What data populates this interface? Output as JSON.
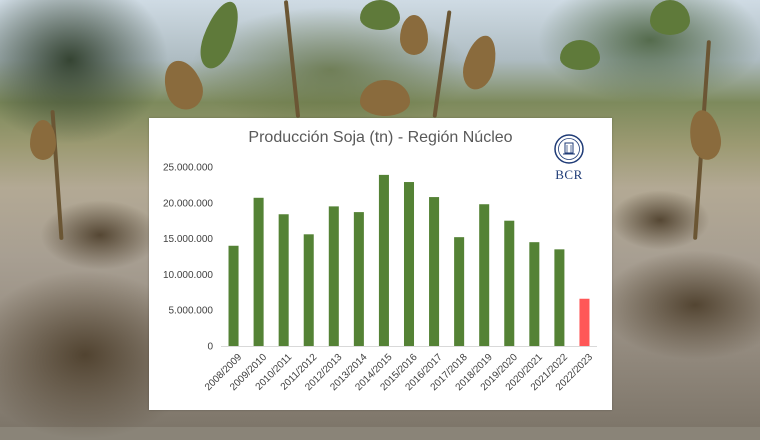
{
  "logo": {
    "text": "BCR"
  },
  "chart_data": {
    "type": "bar",
    "title": "Producción Soja (tn) - Región Núcleo",
    "xlabel": "",
    "ylabel": "",
    "categories": [
      "2008/2009",
      "2009/2010",
      "2010/2011",
      "2011/2012",
      "2012/2013",
      "2013/2014",
      "2014/2015",
      "2015/2016",
      "2016/2017",
      "2017/2018",
      "2018/2019",
      "2019/2020",
      "2020/2021",
      "2021/2022",
      "2022/2023"
    ],
    "values": [
      14000000,
      20700000,
      18400000,
      15600000,
      19500000,
      18700000,
      23900000,
      22900000,
      20800000,
      15200000,
      19800000,
      17500000,
      14500000,
      13500000,
      6600000
    ],
    "bar_colors": [
      "#548235",
      "#548235",
      "#548235",
      "#548235",
      "#548235",
      "#548235",
      "#548235",
      "#548235",
      "#548235",
      "#548235",
      "#548235",
      "#548235",
      "#548235",
      "#548235",
      "#ff5757"
    ],
    "ylim": [
      0,
      25000000
    ],
    "yticks": [
      0,
      5000000,
      10000000,
      15000000,
      20000000,
      25000000
    ],
    "ytick_labels": [
      "0",
      "5.000.000",
      "10.000.000",
      "15.000.000",
      "20.000.000",
      "25.000.000"
    ],
    "grid": false,
    "legend": "none"
  }
}
